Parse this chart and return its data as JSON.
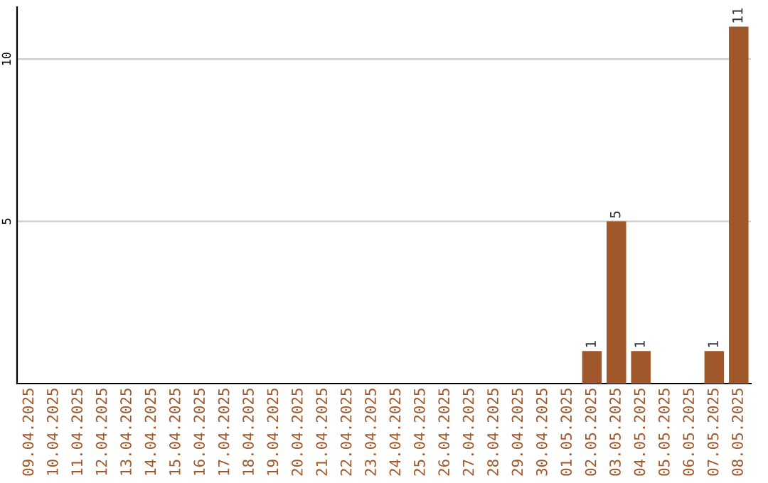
{
  "chart_data": {
    "type": "bar",
    "categories": [
      "09.04.2025",
      "10.04.2025",
      "11.04.2025",
      "12.04.2025",
      "13.04.2025",
      "14.04.2025",
      "15.04.2025",
      "16.04.2025",
      "17.04.2025",
      "18.04.2025",
      "19.04.2025",
      "20.04.2025",
      "21.04.2025",
      "22.04.2025",
      "23.04.2025",
      "24.04.2025",
      "25.04.2025",
      "26.04.2025",
      "27.04.2025",
      "28.04.2025",
      "29.04.2025",
      "30.04.2025",
      "01.05.2025",
      "02.05.2025",
      "03.05.2025",
      "04.05.2025",
      "05.05.2025",
      "06.05.2025",
      "07.05.2025",
      "08.05.2025"
    ],
    "values": [
      0,
      0,
      0,
      0,
      0,
      0,
      0,
      0,
      0,
      0,
      0,
      0,
      0,
      0,
      0,
      0,
      0,
      0,
      0,
      0,
      0,
      0,
      0,
      1,
      5,
      1,
      0,
      0,
      1,
      11
    ],
    "value_labels": [
      null,
      null,
      null,
      null,
      null,
      null,
      null,
      null,
      null,
      null,
      null,
      null,
      null,
      null,
      null,
      null,
      null,
      null,
      null,
      null,
      null,
      null,
      null,
      "1",
      "5",
      "1",
      null,
      null,
      "1",
      "11"
    ],
    "color": "#a0582a",
    "ylim": [
      0,
      11.6
    ],
    "yticks": [
      5,
      10
    ],
    "grid": "y"
  }
}
